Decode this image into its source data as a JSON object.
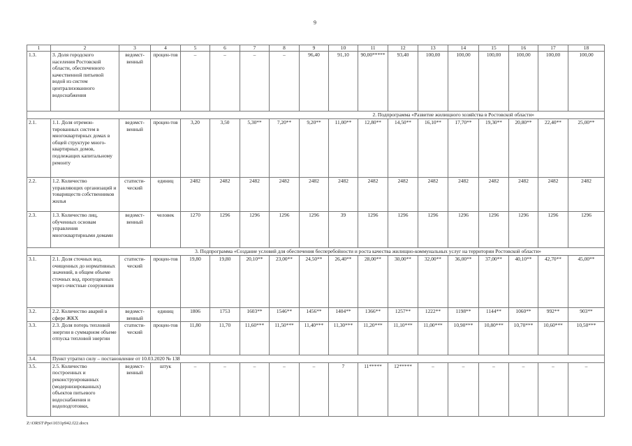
{
  "page_number": "9",
  "header": [
    "1",
    "2",
    "3",
    "4",
    "5",
    "6",
    "7",
    "8",
    "9",
    "10",
    "11",
    "12",
    "13",
    "14",
    "15",
    "16",
    "17",
    "18"
  ],
  "rows": [
    {
      "type": "row",
      "id": "1.3.",
      "name": "3. Доля городского населения Ростовской области, обеспеченного качественной питьевой водой из систем централизованного водоснабжения",
      "source": "ведомст-венный",
      "unit": "процен-тов",
      "values": [
        "–",
        "–",
        "–",
        "–",
        "96,40",
        "91,10",
        "90,00*****",
        "93,40",
        "100,00",
        "100,00",
        "100,00",
        "100,00",
        "100,00",
        "100,00"
      ]
    },
    {
      "type": "sub",
      "text": "2. Подпрограмма «Развитие жилищного хозяйства в Ростовской области»"
    },
    {
      "type": "row",
      "id": "2.1.",
      "name": "1.1. Доля отремон-тированных систем в многоквартирных домах в общей структуре много-квартирных домов, подлежащих капитальному ремонту",
      "source": "ведомст-венный",
      "unit": "процен-тов",
      "values": [
        "3,20",
        "3,50",
        "5,30**",
        "7,20**",
        "9,20**",
        "11,00**",
        "12,80**",
        "14,50**",
        "16,10**",
        "17,70**",
        "19,30**",
        "20,80**",
        "22,40**",
        "25,00**"
      ]
    },
    {
      "type": "row",
      "id": "2.2.",
      "name": "1.2. Количество управляющих организаций и товариществ собственников жилья",
      "source": "статисти-ческий",
      "unit": "единиц",
      "values": [
        "2482",
        "2482",
        "2482",
        "2482",
        "2482",
        "2482",
        "2482",
        "2482",
        "2482",
        "2482",
        "2482",
        "2482",
        "2482",
        "2482"
      ]
    },
    {
      "type": "row",
      "id": "2.3.",
      "name": "1.3. Количество лиц, обученных основам управления многоквартирными домами",
      "source": "ведомст-венный",
      "unit": "человек",
      "values": [
        "1270",
        "1296",
        "1296",
        "1296",
        "1296",
        "39",
        "1296",
        "1296",
        "1296",
        "1296",
        "1296",
        "1296",
        "1296",
        "1296"
      ]
    },
    {
      "type": "sub",
      "text": "3. Подпрограмма «Создание условий для обеспечения бесперебойности и роста качества жилищно-коммунальных услуг на территории Ростовской области»"
    },
    {
      "type": "row",
      "id": "3.1.",
      "name": "2.1. Доля сточных вод, очищенных до нормативных значений, в общем объеме сточных вод, пропущенных через очистные сооружения",
      "source": "статисти-ческий",
      "unit": "процен-тов",
      "values": [
        "19,80",
        "19,80",
        "20,10**",
        "23,00**",
        "24,50**",
        "26,40**",
        "28,00**",
        "30,00**",
        "32,00**",
        "36,00**",
        "37,00**",
        "40,10**",
        "42,70**",
        "45,00**"
      ]
    },
    {
      "type": "row",
      "id": "3.2.",
      "name": "2.2. Количество аварий в сфере ЖКХ",
      "source": "ведомст-венный",
      "unit": "единиц",
      "values": [
        "1806",
        "1753",
        "1603**",
        "1546**",
        "1456**",
        "1404**",
        "1366**",
        "1257**",
        "1222**",
        "1198**",
        "1144**",
        "1060**",
        "992**",
        "903**"
      ]
    },
    {
      "type": "row",
      "id": "3.3.",
      "name": "2.3. Доля потерь тепловой энергии в суммарном объеме отпуска тепловой энергии",
      "source": "статисти-ческий",
      "unit": "процен-тов",
      "values": [
        "11,80",
        "11,70",
        "11,60***",
        "11,50***",
        "11,40***",
        "11,30***",
        "11,20***",
        "11,10***",
        "11,00***",
        "10,90***",
        "10,80***",
        "10,70***",
        "10,60***",
        "10,50***"
      ]
    },
    {
      "type": "void",
      "id": "3.4.",
      "text": "Пункт утратил силу – постановление от 10.03.2020 № 138"
    },
    {
      "type": "row",
      "id": "3.5.",
      "name": "2.5. Количество построенных и реконструированных (модернизированных) объектов питьевого водоснабжения и водоподготовки,",
      "source": "ведомст-венный",
      "unit": "штук",
      "values": [
        "–",
        "–",
        "–",
        "–",
        "–",
        "7",
        "11*****",
        "12*****",
        "–",
        "–",
        "–",
        "–",
        "–",
        "–"
      ]
    }
  ],
  "footer": "Z:\\ORST\\Ppo\\1031p942.f22.docx"
}
